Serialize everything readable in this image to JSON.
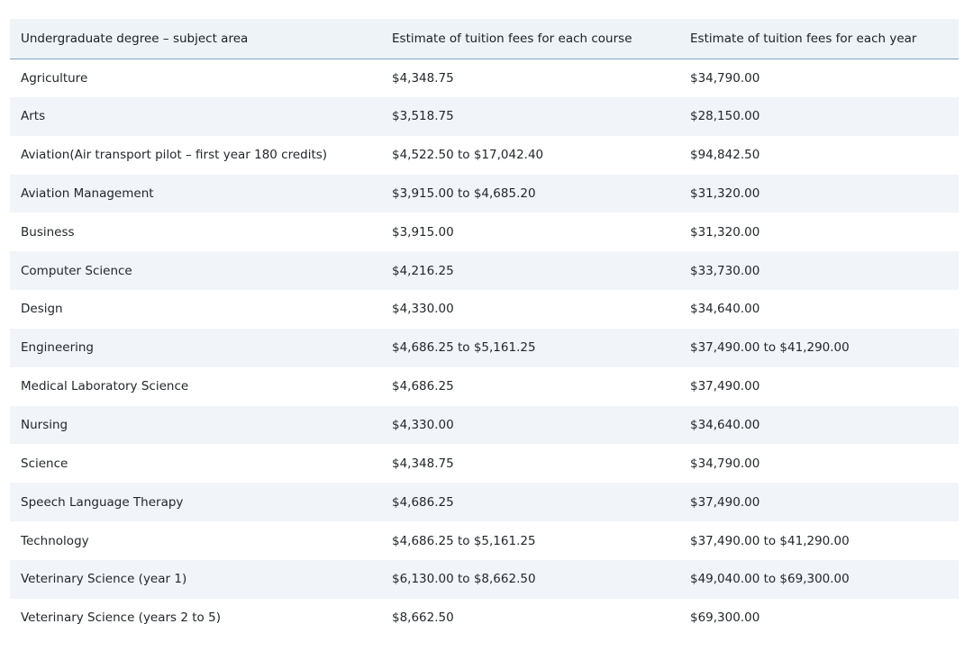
{
  "table": {
    "headers": [
      "Undergraduate degree – subject area",
      "Estimate of tuition fees for each course",
      "Estimate of tuition fees for each year"
    ],
    "rows": [
      [
        "Agriculture",
        "$4,348.75",
        "$34,790.00"
      ],
      [
        "Arts",
        "$3,518.75",
        "$28,150.00"
      ],
      [
        "Aviation(Air transport pilot – first year 180 credits)",
        "$4,522.50 to $17,042.40",
        "$94,842.50"
      ],
      [
        "Aviation Management",
        "$3,915.00 to $4,685.20",
        "$31,320.00"
      ],
      [
        "Business",
        "$3,915.00",
        "$31,320.00"
      ],
      [
        "Computer Science",
        "$4,216.25",
        "$33,730.00"
      ],
      [
        "Design",
        "$4,330.00",
        "$34,640.00"
      ],
      [
        "Engineering",
        "$4,686.25 to $5,161.25",
        "$37,490.00 to $41,290.00"
      ],
      [
        "Medical Laboratory Science",
        "$4,686.25",
        "$37,490.00"
      ],
      [
        "Nursing",
        "$4,330.00",
        "$34,640.00"
      ],
      [
        "Science",
        "$4,348.75",
        "$34,790.00"
      ],
      [
        "Speech Language Therapy",
        "$4,686.25",
        "$37,490.00"
      ],
      [
        "Technology",
        "$4,686.25 to $5,161.25",
        "$37,490.00 to $41,290.00"
      ],
      [
        "Veterinary Science (year 1)",
        "$6,130.00 to $8,662.50",
        "$49,040.00 to $69,300.00"
      ],
      [
        "Veterinary Science (years 2 to 5)",
        "$8,662.50",
        "$69,300.00"
      ]
    ]
  }
}
